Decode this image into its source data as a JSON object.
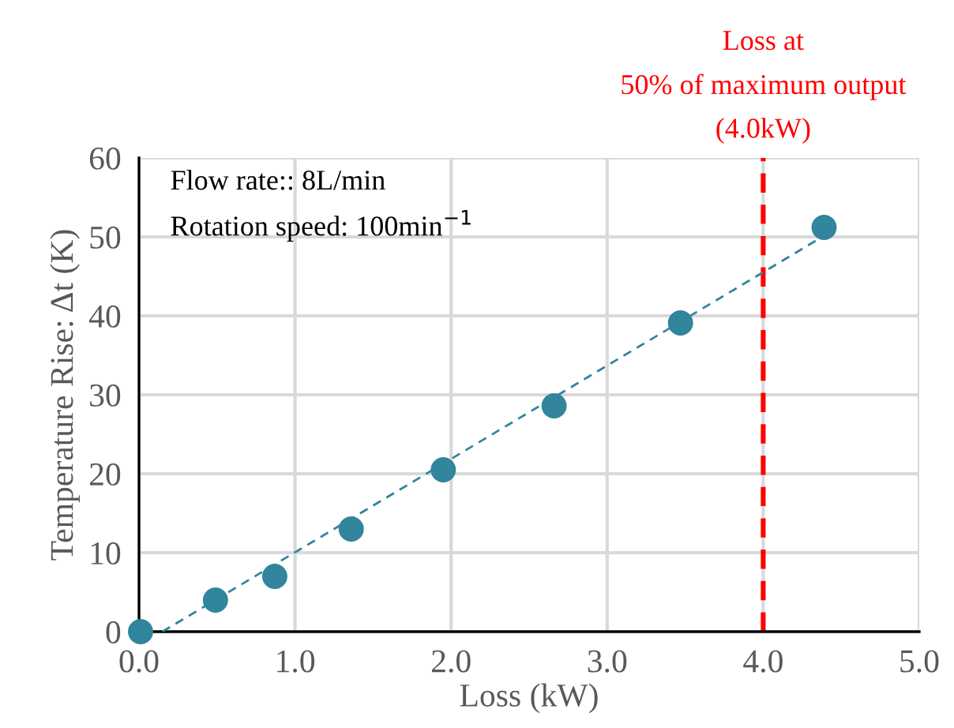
{
  "chart_data": {
    "type": "scatter",
    "xlabel": "Loss (kW)",
    "ylabel": "Temperature Rise: Δt (K)",
    "series": [
      {
        "color": "#31859c",
        "x": [
          0.01,
          0.49,
          0.87,
          1.36,
          1.95,
          2.66,
          3.47,
          4.39
        ],
        "values": [
          0,
          4.0,
          7.0,
          13.0,
          20.5,
          28.6,
          39.1,
          51.2
        ],
        "marker": "circle"
      },
      {
        "type": "line",
        "color": "#31859c",
        "x": [
          0.15,
          4.37
        ],
        "values": [
          0,
          49.9
        ],
        "line_style": "dashed",
        "marker": "none"
      }
    ],
    "xlim": [
      0,
      5
    ],
    "ylim": [
      0,
      60
    ],
    "xticks": [
      {
        "value": 0,
        "label": "0.0"
      },
      {
        "value": 1,
        "label": "1.0"
      },
      {
        "value": 2,
        "label": "2.0"
      },
      {
        "value": 3,
        "label": "3.0"
      },
      {
        "value": 4,
        "label": "4.0"
      },
      {
        "value": 5,
        "label": "5.0"
      }
    ],
    "yticks": [
      0,
      10,
      20,
      30,
      40,
      50,
      60
    ],
    "grid": true,
    "ref_lines": [
      {
        "axis": "x",
        "value": 4.0,
        "label": "Loss at\n50% of maximum output\n(4.0kW)",
        "color": "#ff0000",
        "line_style": "dashed"
      }
    ],
    "annotations": [
      "Flow rate:: 8L/min",
      "Rotation speed: 100min$^{−1}$"
    ]
  }
}
